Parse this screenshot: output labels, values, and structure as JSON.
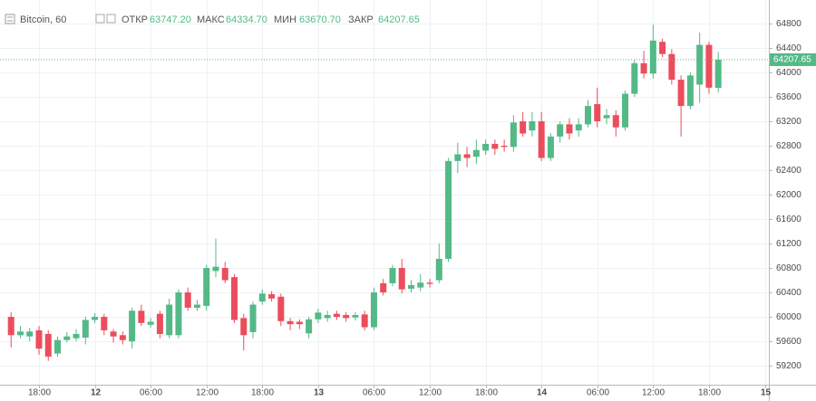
{
  "header": {
    "symbol": "Bitcoin, 60",
    "open_label": "ОТКР",
    "open": "63747.20",
    "high_label": "МАКС",
    "high": "64334.70",
    "low_label": "МИН",
    "low": "63670.70",
    "close_label": "ЗАКР",
    "close": "64207.65"
  },
  "chart_data": {
    "type": "candlestick",
    "up_color": "#53b987",
    "down_color": "#eb4d5c",
    "grid": true,
    "categories": [
      null,
      null,
      null,
      "18:00",
      null,
      null,
      null,
      null,
      null,
      "12",
      null,
      null,
      null,
      null,
      null,
      "06:00",
      null,
      null,
      null,
      null,
      null,
      "12:00",
      null,
      null,
      null,
      null,
      null,
      "18:00",
      null,
      null,
      null,
      null,
      null,
      "13",
      null,
      null,
      null,
      null,
      null,
      "06:00",
      null,
      null,
      null,
      null,
      null,
      "12:00",
      null,
      null,
      null,
      null,
      null,
      "18:00",
      null,
      null,
      null,
      null,
      null,
      "14",
      null,
      null,
      null,
      null,
      null,
      "06:00",
      null,
      null,
      null,
      null,
      null,
      "12:00",
      null,
      null,
      null,
      null,
      null,
      "18:00",
      null,
      null,
      null,
      null,
      null,
      "15"
    ],
    "open": [
      60000,
      59700,
      59680,
      59780,
      59720,
      59400,
      59620,
      59650,
      59660,
      59950,
      60000,
      59760,
      59700,
      59600,
      60100,
      59870,
      60050,
      59700,
      59700,
      60400,
      60150,
      60180,
      60750,
      60800,
      60650,
      59980,
      59750,
      60250,
      60370,
      60330,
      59930,
      59920,
      59730,
      59960,
      59980,
      60050,
      60030,
      59990,
      60040,
      59830,
      60550,
      60550,
      60800,
      60460,
      60480,
      60560,
      60600,
      60950,
      62550,
      62660,
      62620,
      62720,
      62830,
      62800,
      62780,
      63200,
      63050,
      63200,
      62600,
      62950,
      63150,
      63050,
      63150,
      63480,
      63250,
      63300,
      63100,
      63650,
      64150,
      63980,
      64500,
      64300,
      63880,
      63450,
      63800,
      64450,
      63747.2,
      null,
      null,
      null,
      null,
      null
    ],
    "high": [
      60080,
      59850,
      59820,
      59850,
      59780,
      59680,
      59750,
      59800,
      60000,
      60060,
      60050,
      59800,
      59760,
      60150,
      60200,
      59980,
      60100,
      60300,
      60450,
      60480,
      60280,
      60850,
      61280,
      60900,
      60700,
      60050,
      60250,
      60450,
      60420,
      60380,
      59980,
      59960,
      60000,
      60130,
      60100,
      60100,
      60080,
      60080,
      60100,
      60480,
      60620,
      60850,
      60950,
      60600,
      60700,
      60620,
      61200,
      62600,
      62850,
      62780,
      62900,
      62900,
      62900,
      62900,
      63300,
      63350,
      63350,
      63350,
      63000,
      63200,
      63250,
      63250,
      63550,
      63750,
      63400,
      63380,
      63700,
      64200,
      64350,
      64780,
      64550,
      64380,
      63950,
      64000,
      64650,
      64500,
      64334.7,
      null,
      null,
      null,
      null,
      null
    ],
    "low": [
      59500,
      59650,
      59600,
      59380,
      59280,
      59350,
      59580,
      59600,
      59550,
      59900,
      59700,
      59580,
      59550,
      59480,
      59850,
      59820,
      59650,
      59650,
      59650,
      60100,
      60100,
      60100,
      60650,
      60550,
      59900,
      59450,
      59650,
      60200,
      60250,
      59850,
      59780,
      59800,
      59650,
      59900,
      59920,
      59950,
      59920,
      59940,
      59780,
      59780,
      60350,
      60500,
      60380,
      60400,
      60420,
      60480,
      60550,
      60900,
      62350,
      62450,
      62500,
      62650,
      62650,
      62700,
      62700,
      62950,
      62950,
      62550,
      62550,
      62850,
      62900,
      62950,
      63100,
      63100,
      63150,
      62950,
      63050,
      63600,
      63900,
      63900,
      64250,
      63800,
      62950,
      63400,
      63500,
      63650,
      63670.7,
      null,
      null,
      null,
      null,
      null
    ],
    "close": [
      59700,
      59760,
      59760,
      59480,
      59350,
      59620,
      59680,
      59720,
      59950,
      60000,
      59780,
      59680,
      59620,
      60100,
      59900,
      59920,
      59720,
      60200,
      60400,
      60150,
      60200,
      60800,
      60820,
      60600,
      59950,
      59700,
      60200,
      60380,
      60300,
      59930,
      59880,
      59880,
      59960,
      60070,
      60030,
      60000,
      59980,
      60030,
      59830,
      60400,
      60400,
      60800,
      60450,
      60520,
      60560,
      60540,
      60950,
      62550,
      62660,
      62600,
      62730,
      62830,
      62750,
      62780,
      63180,
      63000,
      63200,
      62600,
      62950,
      63150,
      63000,
      63150,
      63450,
      63200,
      63300,
      63100,
      63650,
      64150,
      63980,
      64520,
      64300,
      63880,
      63450,
      63950,
      64450,
      63750,
      64207.65,
      null,
      null,
      null,
      null,
      null
    ],
    "ylim": [
      58890,
      65110
    ],
    "yticks": [
      59200,
      59600,
      60000,
      60400,
      60800,
      61200,
      61600,
      62000,
      62400,
      62800,
      63200,
      63600,
      64000,
      64400,
      64800
    ]
  }
}
